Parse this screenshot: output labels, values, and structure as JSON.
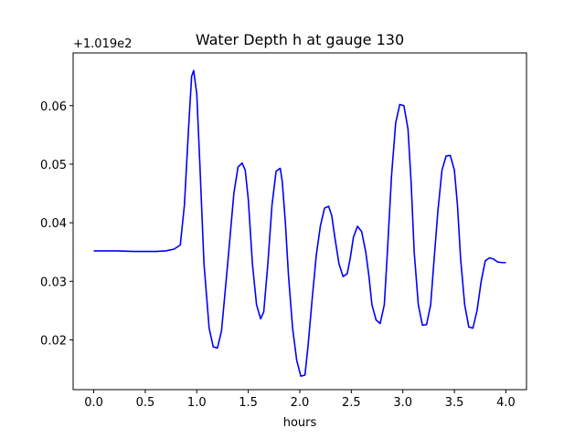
{
  "chart_data": {
    "type": "line",
    "title": "Water Depth h at gauge 130",
    "xlabel": "hours",
    "ylabel": "",
    "offset_text": "+1.019e2",
    "xlim": [
      -0.2,
      4.2
    ],
    "ylim": [
      0.0115,
      0.069
    ],
    "grid": false,
    "xticks": [
      0.0,
      0.5,
      1.0,
      1.5,
      2.0,
      2.5,
      3.0,
      3.5,
      4.0
    ],
    "xtick_labels": [
      "0.0",
      "0.5",
      "1.0",
      "1.5",
      "2.0",
      "2.5",
      "3.0",
      "3.5",
      "4.0"
    ],
    "yticks": [
      0.02,
      0.03,
      0.04,
      0.05,
      0.06
    ],
    "ytick_labels": [
      "0.02",
      "0.03",
      "0.04",
      "0.05",
      "0.06"
    ],
    "series": [
      {
        "color": "#0000ff",
        "x": [
          0.0,
          0.2,
          0.4,
          0.6,
          0.7,
          0.78,
          0.84,
          0.88,
          0.92,
          0.95,
          0.97,
          1.0,
          1.03,
          1.07,
          1.12,
          1.16,
          1.2,
          1.24,
          1.3,
          1.36,
          1.4,
          1.44,
          1.47,
          1.5,
          1.54,
          1.58,
          1.62,
          1.65,
          1.69,
          1.73,
          1.77,
          1.81,
          1.83,
          1.86,
          1.89,
          1.93,
          1.97,
          2.01,
          2.05,
          2.08,
          2.12,
          2.16,
          2.2,
          2.24,
          2.28,
          2.31,
          2.34,
          2.38,
          2.42,
          2.46,
          2.49,
          2.52,
          2.56,
          2.6,
          2.64,
          2.67,
          2.7,
          2.74,
          2.78,
          2.82,
          2.85,
          2.89,
          2.93,
          2.97,
          3.01,
          3.05,
          3.08,
          3.11,
          3.15,
          3.19,
          3.23,
          3.27,
          3.3,
          3.34,
          3.38,
          3.42,
          3.46,
          3.5,
          3.53,
          3.56,
          3.6,
          3.64,
          3.68,
          3.72,
          3.76,
          3.8,
          3.84,
          3.88,
          3.92,
          3.96,
          4.0
        ],
        "y": [
          0.0352,
          0.0352,
          0.0351,
          0.0351,
          0.0352,
          0.0355,
          0.0362,
          0.043,
          0.056,
          0.065,
          0.066,
          0.062,
          0.05,
          0.033,
          0.022,
          0.0188,
          0.0186,
          0.0215,
          0.033,
          0.045,
          0.0495,
          0.0502,
          0.049,
          0.044,
          0.033,
          0.026,
          0.0236,
          0.0248,
          0.033,
          0.043,
          0.0488,
          0.0493,
          0.047,
          0.04,
          0.031,
          0.022,
          0.0165,
          0.0138,
          0.014,
          0.019,
          0.027,
          0.0345,
          0.0395,
          0.0425,
          0.0428,
          0.0412,
          0.0375,
          0.033,
          0.0308,
          0.0313,
          0.034,
          0.0375,
          0.0394,
          0.0385,
          0.035,
          0.031,
          0.026,
          0.0234,
          0.0228,
          0.026,
          0.035,
          0.048,
          0.057,
          0.0602,
          0.06,
          0.056,
          0.047,
          0.035,
          0.026,
          0.0225,
          0.0226,
          0.026,
          0.033,
          0.042,
          0.049,
          0.0514,
          0.0515,
          0.049,
          0.043,
          0.034,
          0.026,
          0.0222,
          0.022,
          0.025,
          0.03,
          0.0335,
          0.034,
          0.0338,
          0.0333,
          0.0332,
          0.0332
        ]
      }
    ]
  }
}
